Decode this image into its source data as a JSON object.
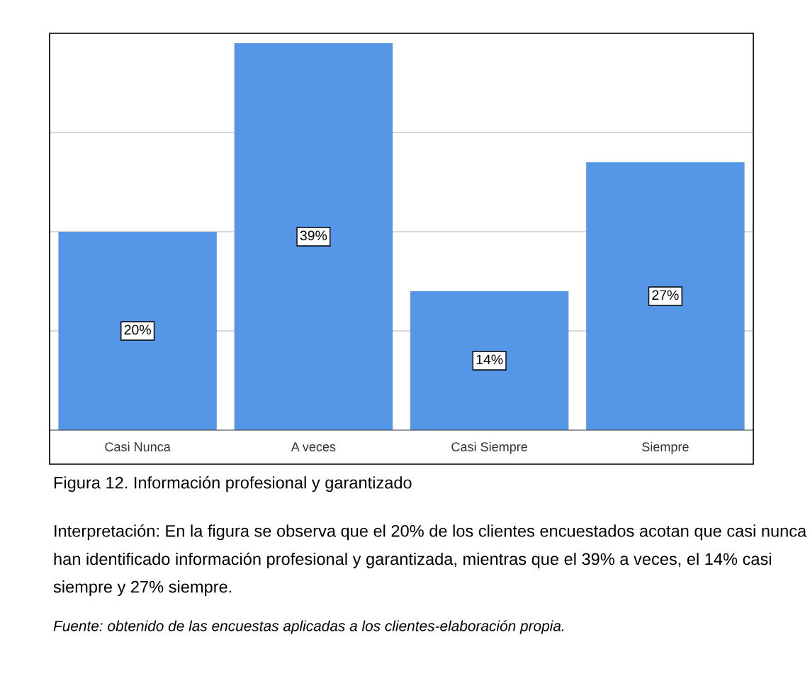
{
  "chart_data": {
    "type": "bar",
    "title": "Figura 12. Información profesional y garantizado",
    "categories": [
      "Casi Nunca",
      "A veces",
      "Casi Siempre",
      "Siempre"
    ],
    "values": [
      20,
      39,
      14,
      27
    ],
    "color": "#5596e6",
    "value_labels": [
      "20%",
      "39%",
      "14%",
      "27%"
    ],
    "ylim": [
      0,
      40
    ],
    "yticks": [
      {
        "value": 10,
        "label": null
      },
      {
        "value": 20,
        "label": null
      },
      {
        "value": 30,
        "label": null
      },
      {
        "value": 40,
        "label": null
      }
    ],
    "tick_labels": "x",
    "grid": "y",
    "annotations": [
      "Interpretación: En la figura se observa que el 20% de los clientes encuestados acotan que casi nunca han identificado información profesional y garantizada, mientras que el 39% a veces, el 14% casi siempre y 27% siempre.",
      "Fuente: obtenido de las encuestas aplicadas a los clientes-elaboración propia."
    ]
  }
}
